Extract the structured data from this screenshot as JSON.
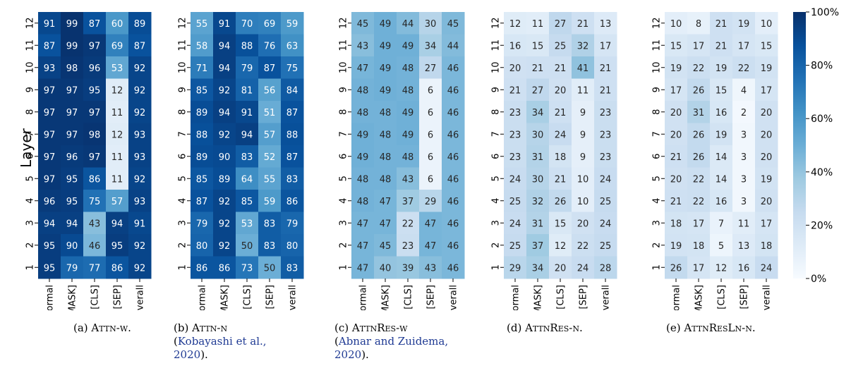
{
  "chart_data": {
    "type": "heatmap",
    "ylabel": "Layer",
    "rows": [
      "12",
      "11",
      "10",
      "9",
      "8",
      "7",
      "6",
      "5",
      "4",
      "3",
      "2",
      "1"
    ],
    "columns": [
      "Normal",
      "[MASK]",
      "[CLS]",
      "[SEP]",
      "Overall"
    ],
    "colorbar": {
      "min": 0,
      "max": 100,
      "ticks": [
        "0%",
        "20%",
        "40%",
        "60%",
        "80%",
        "100%"
      ]
    },
    "panels": [
      {
        "caption_label": "(a)",
        "caption_name": "Attn-w.",
        "caption_cite": "",
        "caption_year": "",
        "values": [
          [
            91,
            99,
            87,
            60,
            89
          ],
          [
            87,
            99,
            97,
            69,
            87
          ],
          [
            93,
            98,
            96,
            53,
            92
          ],
          [
            97,
            97,
            95,
            12,
            92
          ],
          [
            97,
            97,
            97,
            11,
            92
          ],
          [
            97,
            97,
            98,
            12,
            93
          ],
          [
            97,
            96,
            97,
            11,
            93
          ],
          [
            97,
            95,
            86,
            11,
            92
          ],
          [
            96,
            95,
            75,
            57,
            93
          ],
          [
            94,
            94,
            43,
            94,
            91
          ],
          [
            95,
            90,
            46,
            95,
            92
          ],
          [
            95,
            79,
            77,
            86,
            92
          ]
        ]
      },
      {
        "caption_label": "(b)",
        "caption_name": "Attn-n",
        "caption_cite": "Kobayashi et al.,",
        "caption_year": "2020",
        "values": [
          [
            55,
            91,
            70,
            69,
            59
          ],
          [
            58,
            94,
            88,
            76,
            63
          ],
          [
            71,
            94,
            79,
            87,
            75
          ],
          [
            85,
            92,
            81,
            56,
            84
          ],
          [
            89,
            94,
            91,
            51,
            87
          ],
          [
            88,
            92,
            94,
            57,
            88
          ],
          [
            89,
            90,
            83,
            52,
            87
          ],
          [
            85,
            89,
            64,
            55,
            83
          ],
          [
            87,
            92,
            85,
            59,
            86
          ],
          [
            79,
            92,
            53,
            83,
            79
          ],
          [
            80,
            92,
            50,
            83,
            80
          ],
          [
            86,
            86,
            73,
            50,
            83
          ]
        ]
      },
      {
        "caption_label": "(c)",
        "caption_name": "AttnRes-w",
        "caption_cite": "Abnar and Zuidema,",
        "caption_year": "2020",
        "values": [
          [
            45,
            49,
            44,
            30,
            45
          ],
          [
            43,
            49,
            49,
            34,
            44
          ],
          [
            47,
            49,
            48,
            27,
            46
          ],
          [
            48,
            49,
            48,
            6,
            46
          ],
          [
            48,
            48,
            49,
            6,
            46
          ],
          [
            49,
            48,
            49,
            6,
            46
          ],
          [
            49,
            48,
            48,
            6,
            46
          ],
          [
            48,
            48,
            43,
            6,
            46
          ],
          [
            48,
            47,
            37,
            29,
            46
          ],
          [
            47,
            47,
            22,
            47,
            46
          ],
          [
            47,
            45,
            23,
            47,
            46
          ],
          [
            47,
            40,
            39,
            43,
            46
          ]
        ]
      },
      {
        "caption_label": "(d)",
        "caption_name": "AttnRes-n.",
        "caption_cite": "",
        "caption_year": "",
        "values": [
          [
            12,
            11,
            27,
            21,
            13
          ],
          [
            16,
            15,
            25,
            32,
            17
          ],
          [
            20,
            21,
            21,
            41,
            21
          ],
          [
            21,
            27,
            20,
            11,
            21
          ],
          [
            23,
            34,
            21,
            9,
            23
          ],
          [
            23,
            30,
            24,
            9,
            23
          ],
          [
            23,
            31,
            18,
            9,
            23
          ],
          [
            24,
            30,
            21,
            10,
            24
          ],
          [
            25,
            32,
            26,
            10,
            25
          ],
          [
            24,
            31,
            15,
            20,
            24
          ],
          [
            25,
            37,
            12,
            22,
            25
          ],
          [
            29,
            34,
            20,
            24,
            28
          ]
        ]
      },
      {
        "caption_label": "(e)",
        "caption_name": "AttnResLn-n.",
        "caption_cite": "",
        "caption_year": "",
        "values": [
          [
            10,
            8,
            21,
            19,
            10
          ],
          [
            15,
            17,
            21,
            17,
            15
          ],
          [
            19,
            22,
            19,
            22,
            19
          ],
          [
            17,
            26,
            15,
            4,
            17
          ],
          [
            20,
            31,
            16,
            2,
            20
          ],
          [
            20,
            26,
            19,
            3,
            20
          ],
          [
            21,
            26,
            14,
            3,
            20
          ],
          [
            20,
            22,
            14,
            3,
            19
          ],
          [
            21,
            22,
            16,
            3,
            20
          ],
          [
            18,
            17,
            7,
            11,
            17
          ],
          [
            19,
            18,
            5,
            13,
            18
          ],
          [
            26,
            17,
            12,
            16,
            24
          ]
        ]
      }
    ]
  }
}
